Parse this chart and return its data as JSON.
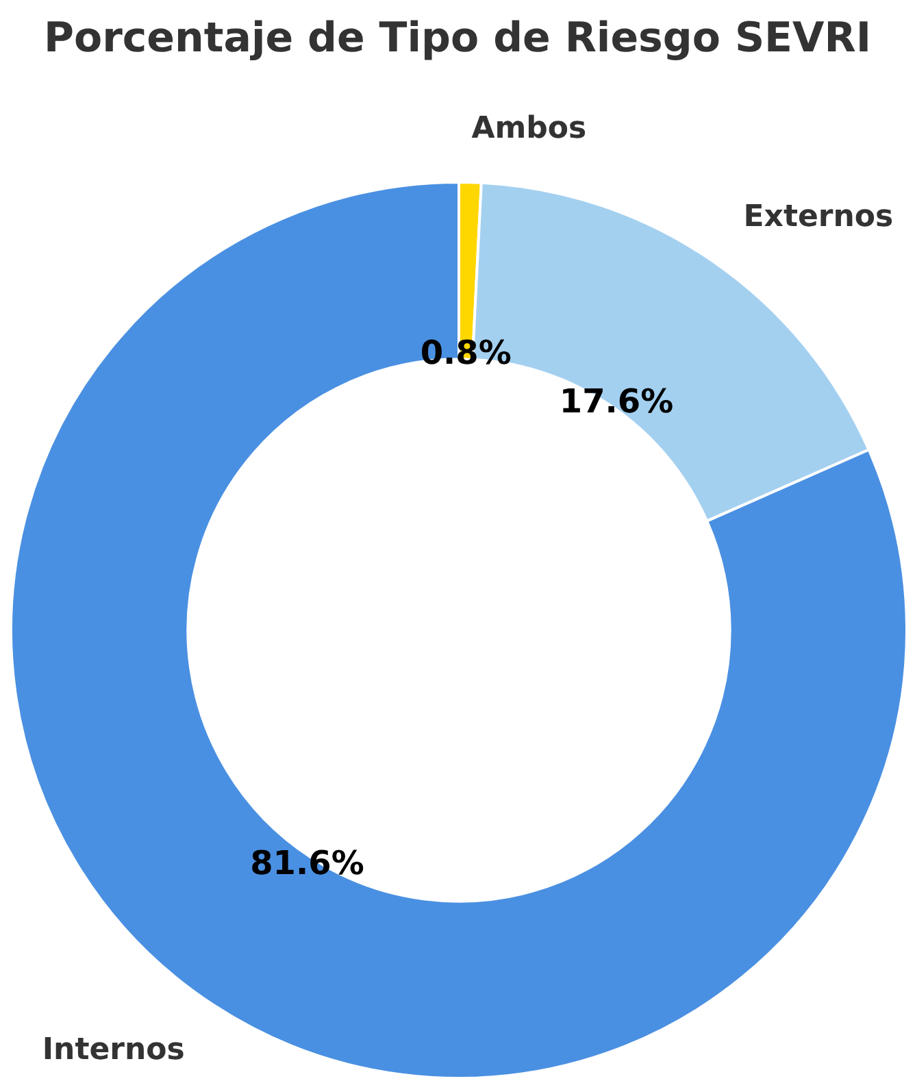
{
  "chart_data": {
    "type": "donut",
    "title": "Porcentaje de Tipo de Riesgo SEVRI",
    "categories": [
      "Ambos",
      "Externos",
      "Internos"
    ],
    "values": [
      0.8,
      17.6,
      81.6
    ],
    "colors": [
      "#ffd700",
      "#a4d0f0",
      "#4a90e2"
    ],
    "value_labels": [
      "0.8%",
      "17.6%",
      "81.6%"
    ],
    "legend": false
  }
}
